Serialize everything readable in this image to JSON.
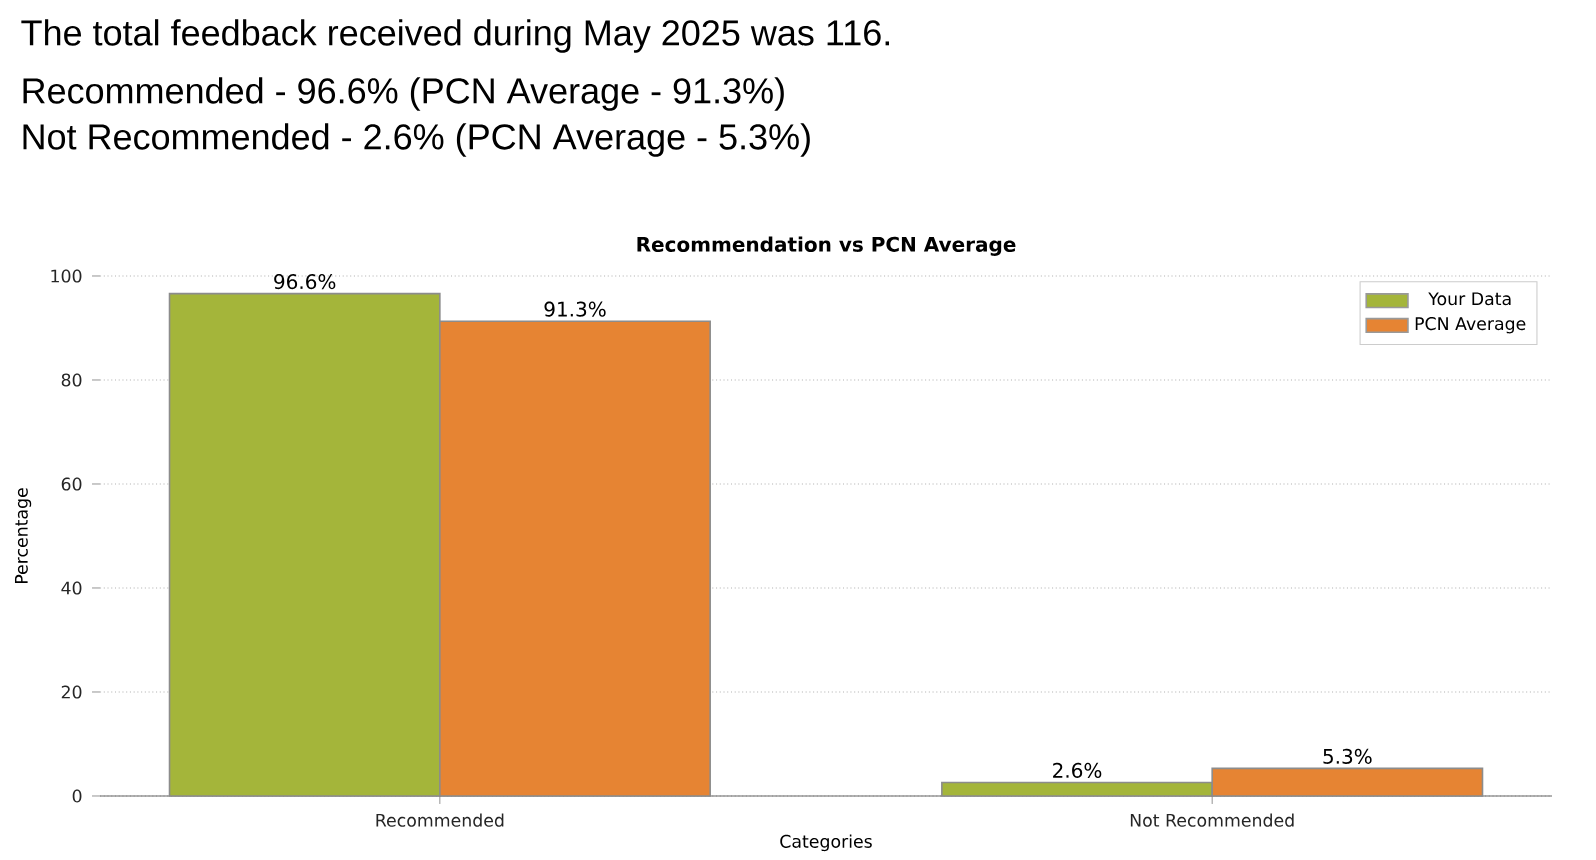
{
  "chart_data": {
    "type": "bar",
    "title": "Recommendation vs PCN Average",
    "annotations": [
      "The total feedback received during May 2025 was 116.",
      "Recommended - 96.6%  (PCN Average - 91.3%)",
      "Not Recommended - 2.6%  (PCN Average - 5.3%)"
    ],
    "xlabel": "Categories",
    "ylabel": "Percentage",
    "categories": [
      "Recommended",
      "Not Recommended"
    ],
    "series": [
      {
        "name": "Your Data",
        "color": "#a4b53a",
        "values": [
          96.6,
          2.6
        ],
        "value_labels": [
          "96.6%",
          "2.6%"
        ]
      },
      {
        "name": "PCN Average",
        "color": "#e68433",
        "values": [
          91.3,
          5.3
        ],
        "value_labels": [
          "91.3%",
          "5.3%"
        ]
      }
    ],
    "ylim": [
      0,
      100
    ],
    "yticks": [
      0,
      20,
      40,
      60,
      80,
      100
    ],
    "grid": "y",
    "legend": "top right"
  }
}
